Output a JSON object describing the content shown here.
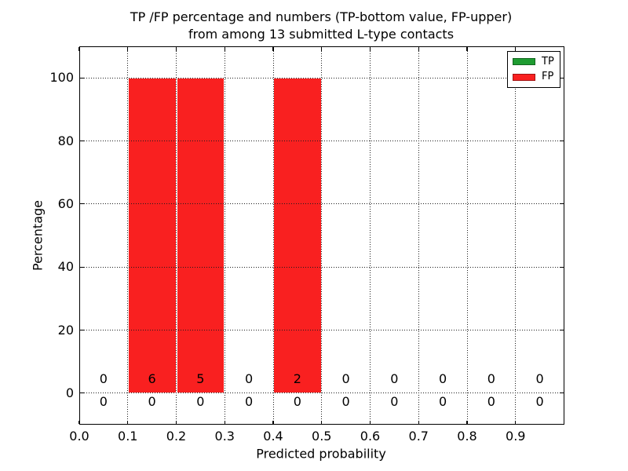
{
  "chart_data": {
    "type": "bar",
    "title_lines": [
      "TP /FP percentage and numbers (TP-bottom value, FP-upper)",
      "from among 13 submitted L-type contacts"
    ],
    "xlabel": "Predicted probability",
    "ylabel": "Percentage",
    "xlim": [
      0.0,
      1.0
    ],
    "ylim": [
      -10,
      110
    ],
    "grid": "dotted",
    "axisbelow": false,
    "bin_width": 0.1,
    "bin_starts": [
      0.0,
      0.1,
      0.2,
      0.3,
      0.4,
      0.5,
      0.6,
      0.7,
      0.8,
      0.9
    ],
    "xtick_labels": [
      "0.0",
      "0.1",
      "0.2",
      "0.3",
      "0.4",
      "0.5",
      "0.6",
      "0.7",
      "0.8",
      "0.9"
    ],
    "ytick_values": [
      0,
      20,
      40,
      60,
      80,
      100
    ],
    "ytick_labels": [
      "0",
      "20",
      "40",
      "60",
      "80",
      "100"
    ],
    "series": [
      {
        "name": "TP",
        "color": "#1e9c31",
        "percent": [
          0,
          0,
          0,
          0,
          0,
          0,
          0,
          0,
          0,
          0
        ],
        "counts": [
          0,
          0,
          0,
          0,
          0,
          0,
          0,
          0,
          0,
          0
        ]
      },
      {
        "name": "FP",
        "color": "#f92020",
        "percent": [
          0,
          100,
          100,
          0,
          100,
          0,
          0,
          0,
          0,
          0
        ],
        "counts": [
          0,
          6,
          5,
          0,
          2,
          0,
          0,
          0,
          0,
          0
        ]
      }
    ],
    "count_label_rows": {
      "fp_row_y": 4.4,
      "tp_row_y": -2.8
    },
    "legend": {
      "position": "upper right",
      "entries": [
        {
          "label": "TP",
          "color": "#1e9c31"
        },
        {
          "label": "FP",
          "color": "#f92020"
        }
      ]
    }
  }
}
